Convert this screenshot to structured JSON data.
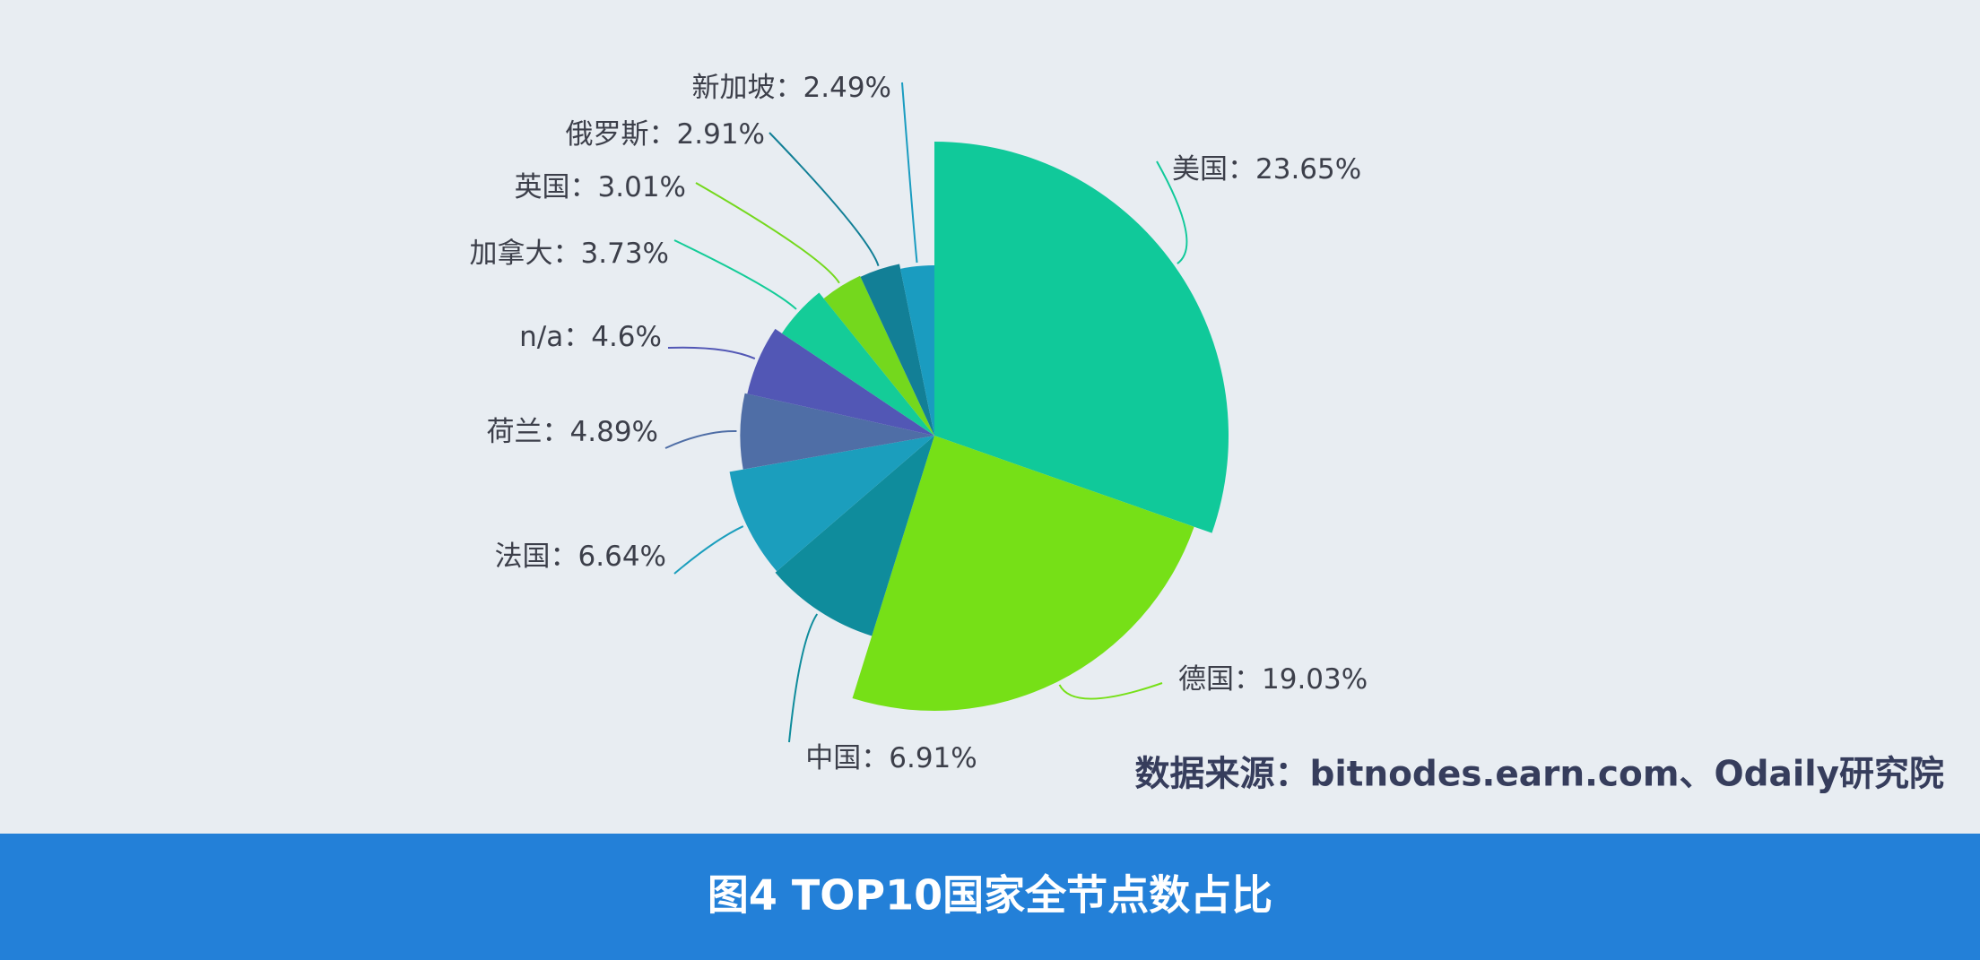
{
  "chart_data": {
    "type": "rose",
    "title": "图4 TOP10国家全节点数占比",
    "source": "数据来源：bitnodes.earn.com、Odaily研究院",
    "categories": [
      "美国",
      "德国",
      "中国",
      "法国",
      "荷兰",
      "n/a",
      "加拿大",
      "英国",
      "俄罗斯",
      "新加坡"
    ],
    "values": [
      23.65,
      19.03,
      6.91,
      6.64,
      4.89,
      4.6,
      3.73,
      3.01,
      2.91,
      2.49
    ],
    "value_labels": [
      "：23.65%",
      "：19.03%",
      "：6.91%",
      "：6.64%",
      "：4.89%",
      "：4.6%",
      "：3.73%",
      "：3.01%",
      "：2.91%",
      "：2.49%"
    ],
    "colors": [
      "#10c99a",
      "#76e017",
      "#0f8c9c",
      "#1b9ebd",
      "#4f6ea6",
      "#5257b5",
      "#14cc98",
      "#74d81d",
      "#127f96",
      "#1a9cc0"
    ]
  }
}
